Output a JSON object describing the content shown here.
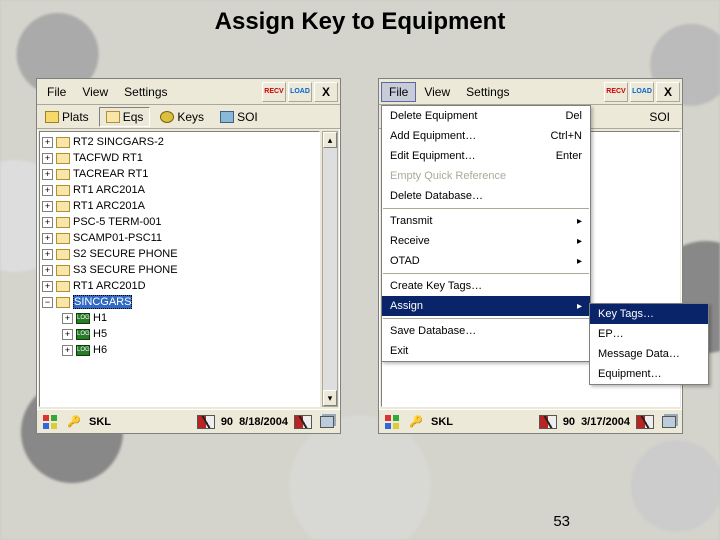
{
  "slide": {
    "title": "Assign Key to Equipment",
    "page_number": "53"
  },
  "menubar": {
    "file": "File",
    "view": "View",
    "settings": "Settings",
    "recv": "RECV",
    "load": "LOAD",
    "close": "X"
  },
  "tabs": {
    "plats": "Plats",
    "eqs": "Eqs",
    "keys": "Keys",
    "soi": "SOI"
  },
  "left": {
    "tree": [
      {
        "exp": "+",
        "label": "RT2 SINCGARS-2"
      },
      {
        "exp": "+",
        "label": "TACFWD RT1"
      },
      {
        "exp": "+",
        "label": "TACREAR RT1"
      },
      {
        "exp": "+",
        "label": "RT1 ARC201A"
      },
      {
        "exp": "+",
        "label": "RT1 ARC201A"
      },
      {
        "exp": "+",
        "label": "PSC-5 TERM-001"
      },
      {
        "exp": "+",
        "label": "SCAMP01-PSC11"
      },
      {
        "exp": "+",
        "label": "S2 SECURE PHONE"
      },
      {
        "exp": "+",
        "label": "S3 SECURE PHONE"
      },
      {
        "exp": "+",
        "label": "RT1 ARC201D"
      },
      {
        "exp": "−",
        "label": "SINCGARS",
        "selected": true
      }
    ],
    "children": [
      {
        "exp": "+",
        "label": "H1"
      },
      {
        "exp": "+",
        "label": "H5"
      },
      {
        "exp": "+",
        "label": "H6"
      }
    ],
    "status": {
      "app": "SKL",
      "num": "90",
      "date": "8/18/2004"
    }
  },
  "right": {
    "menu": {
      "group1": [
        {
          "label": "Delete Equipment",
          "accel": "Del"
        },
        {
          "label": "Add Equipment…",
          "accel": "Ctrl+N"
        },
        {
          "label": "Edit Equipment…",
          "accel": "Enter"
        },
        {
          "label": "Empty Quick Reference",
          "disabled": true
        },
        {
          "label": "Delete Database…"
        }
      ],
      "group2": [
        {
          "label": "Transmit",
          "sub": true
        },
        {
          "label": "Receive",
          "sub": true
        },
        {
          "label": "OTAD",
          "sub": true
        }
      ],
      "group3": [
        {
          "label": "Create Key Tags…"
        },
        {
          "label": "Assign",
          "sub": true,
          "hl": true
        }
      ],
      "group4": [
        {
          "label": "Save Database…"
        },
        {
          "label": "Exit"
        }
      ],
      "submenu": [
        {
          "label": "Key Tags…",
          "hl": true
        },
        {
          "label": "EP…"
        },
        {
          "label": "Message Data…"
        },
        {
          "label": "Equipment…"
        }
      ]
    },
    "status": {
      "app": "SKL",
      "num": "90",
      "date": "3/17/2004"
    }
  }
}
